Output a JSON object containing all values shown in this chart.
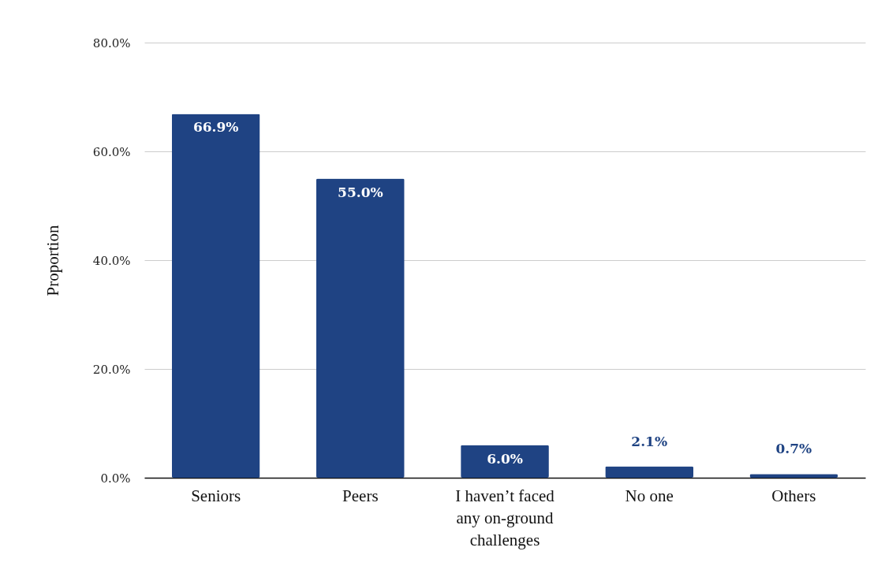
{
  "chart_data": {
    "type": "bar",
    "ylabel": "Proportion",
    "categories": [
      "Seniors",
      "Peers",
      "I haven’t faced any on-ground challenges",
      "No one",
      "Others"
    ],
    "values": [
      66.9,
      55.0,
      6.0,
      2.1,
      0.7
    ],
    "value_labels": [
      "66.9%",
      "55.0%",
      "6.0%",
      "2.1%",
      "0.7%"
    ],
    "color": "#1f4383",
    "ylim": [
      0,
      80
    ],
    "yticks": [
      {
        "value": 0,
        "label": "0.0%"
      },
      {
        "value": 20,
        "label": "20.0%"
      },
      {
        "value": 40,
        "label": "40.0%"
      },
      {
        "value": 60,
        "label": "60.0%"
      },
      {
        "value": 80,
        "label": "80.0%"
      }
    ],
    "grid": "y"
  }
}
